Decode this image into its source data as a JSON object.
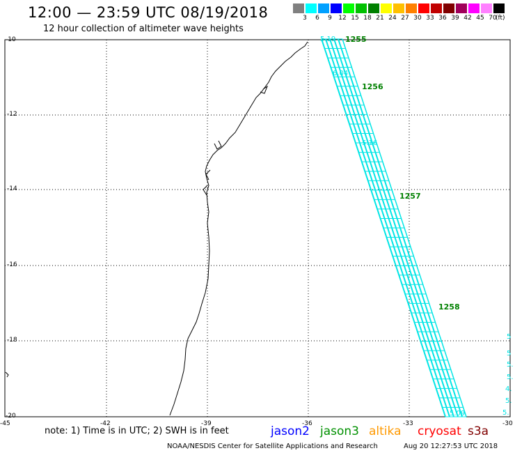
{
  "header": {
    "title": "12:00 — 23:59 UTC 08/19/2018",
    "subtitle": "12 hour collection of altimeter wave heights"
  },
  "scale": {
    "unit": "(ft)",
    "bins": [
      {
        "label": "3",
        "color": "#808080"
      },
      {
        "label": "6",
        "color": "#00ffff"
      },
      {
        "label": "9",
        "color": "#00a0ff"
      },
      {
        "label": "12",
        "color": "#0000ff"
      },
      {
        "label": "15",
        "color": "#00ff00"
      },
      {
        "label": "18",
        "color": "#00c000"
      },
      {
        "label": "21",
        "color": "#008000"
      },
      {
        "label": "24",
        "color": "#ffff00"
      },
      {
        "label": "27",
        "color": "#ffc000"
      },
      {
        "label": "30",
        "color": "#ff8000"
      },
      {
        "label": "33",
        "color": "#ff0000"
      },
      {
        "label": "36",
        "color": "#c00000"
      },
      {
        "label": "39",
        "color": "#800000"
      },
      {
        "label": "42",
        "color": "#a0005a"
      },
      {
        "label": "45",
        "color": "#ff00ff"
      },
      {
        "label": "70",
        "color": "#ff80ff"
      },
      {
        "label": "",
        "color": "#000000"
      }
    ]
  },
  "map": {
    "lat_labels": [
      "-10",
      "-12",
      "-14",
      "-16",
      "-18",
      "-20"
    ],
    "lon_labels": [
      "-45",
      "-42",
      "-39",
      "-36",
      "-33",
      "-30"
    ],
    "track_values": [
      "5.19",
      "6.04",
      "5.16",
      "5.09"
    ],
    "right_edge_values": [
      "5",
      "5",
      "5.",
      "5.",
      "4.",
      "5.",
      "5."
    ],
    "pass_labels": [
      "1255",
      "1256",
      "1257",
      "1258"
    ],
    "track_color": "#00e5e5",
    "pass_color": "#008000"
  },
  "footer": {
    "note": "note: 1) Time is in UTC; 2) SWH is in feet",
    "satellites": [
      {
        "name": "jason2",
        "color": "#0000ff"
      },
      {
        "name": "jason3",
        "color": "#009000"
      },
      {
        "name": "altika",
        "color": "#ff9900"
      },
      {
        "name": "cryosat",
        "color": "#ff0000"
      },
      {
        "name": "s3a",
        "color": "#800000"
      }
    ],
    "credit": "NOAA/NESDIS Center for Satellite Applications and Research",
    "timestamp": "Aug 20 12:27:53 UTC 2018"
  }
}
